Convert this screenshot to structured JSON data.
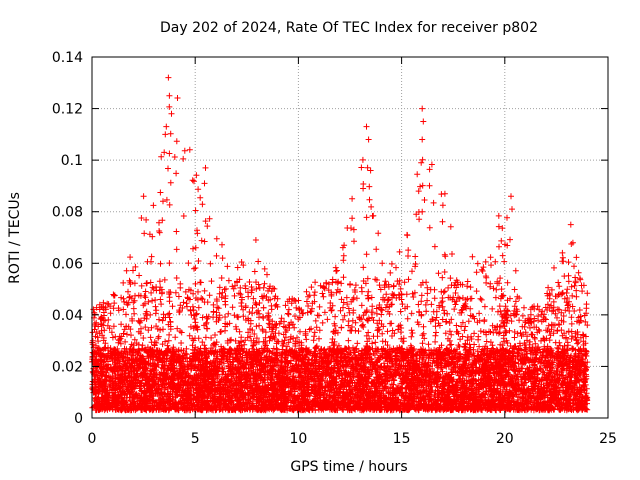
{
  "chart_data": {
    "type": "scatter",
    "title": "Day 202 of 2024, Rate Of TEC Index for receiver p802",
    "xlabel": "GPS time / hours",
    "ylabel": "ROTI / TECUs",
    "xlim": [
      0,
      25
    ],
    "ylim": [
      0,
      0.14
    ],
    "xticks": [
      0,
      5,
      10,
      15,
      20,
      25
    ],
    "yticks": [
      0,
      0.02,
      0.04,
      0.06,
      0.08,
      0.1,
      0.12,
      0.14
    ],
    "xtick_labels": [
      "0",
      "5",
      "10",
      "15",
      "20",
      "25"
    ],
    "ytick_labels": [
      "0",
      "0.02",
      "0.04",
      "0.06",
      "0.08",
      "0.1",
      "0.12",
      "0.14"
    ],
    "grid": true,
    "marker": "+",
    "point_color": "#ff0000",
    "time_range": [
      0,
      24
    ],
    "envelope_hours": [
      0,
      1,
      2,
      3,
      4,
      5,
      6,
      7,
      8,
      9,
      10,
      11,
      12,
      13,
      14,
      15,
      16,
      17,
      18,
      19,
      20,
      21,
      22,
      23,
      24
    ],
    "envelope_roti": [
      0.042,
      0.047,
      0.075,
      0.088,
      0.132,
      0.097,
      0.074,
      0.058,
      0.07,
      0.048,
      0.046,
      0.055,
      0.062,
      0.113,
      0.068,
      0.068,
      0.12,
      0.087,
      0.062,
      0.066,
      0.086,
      0.04,
      0.05,
      0.075,
      0.05
    ],
    "peaks": [
      {
        "x": 3.7,
        "y": 0.132
      },
      {
        "x": 3.75,
        "y": 0.125
      },
      {
        "x": 3.55,
        "y": 0.11
      },
      {
        "x": 3.5,
        "y": 0.103
      },
      {
        "x": 3.85,
        "y": 0.118
      },
      {
        "x": 2.5,
        "y": 0.086
      },
      {
        "x": 5.5,
        "y": 0.097
      },
      {
        "x": 5.45,
        "y": 0.091
      },
      {
        "x": 13.3,
        "y": 0.113
      },
      {
        "x": 13.4,
        "y": 0.108
      },
      {
        "x": 13.5,
        "y": 0.096
      },
      {
        "x": 12.6,
        "y": 0.085
      },
      {
        "x": 16.0,
        "y": 0.12
      },
      {
        "x": 16.05,
        "y": 0.115
      },
      {
        "x": 16.0,
        "y": 0.108
      },
      {
        "x": 15.95,
        "y": 0.099
      },
      {
        "x": 16.0,
        "y": 0.08
      },
      {
        "x": 20.3,
        "y": 0.086
      },
      {
        "x": 20.35,
        "y": 0.081
      },
      {
        "x": 23.2,
        "y": 0.075
      },
      {
        "x": 23.3,
        "y": 0.068
      },
      {
        "x": 17.1,
        "y": 0.087
      }
    ]
  }
}
